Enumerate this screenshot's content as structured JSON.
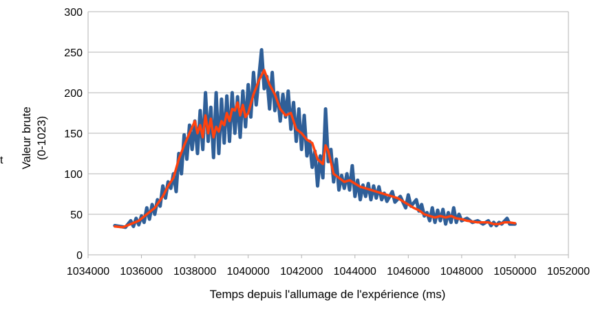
{
  "chart_data": {
    "type": "line",
    "title": "",
    "xlabel": "Temps depuis l'allumage de l'expérience (ms)",
    "ylabel_lines": [
      "Valeur brute",
      "(0-1023)"
    ],
    "xlim": [
      1034000,
      1052000
    ],
    "ylim": [
      0,
      300
    ],
    "x_ticks": [
      1034000,
      1036000,
      1038000,
      1040000,
      1042000,
      1044000,
      1046000,
      1048000,
      1050000,
      1052000
    ],
    "y_ticks": [
      0,
      50,
      100,
      150,
      200,
      250,
      300
    ],
    "grid": "horizontal",
    "legend": "none",
    "left_edge_fragment": "t",
    "series": [
      {
        "color": "#2f5f98",
        "points": [
          [
            1035000,
            36
          ],
          [
            1035200,
            35
          ],
          [
            1035400,
            34
          ],
          [
            1035600,
            42
          ],
          [
            1035700,
            35
          ],
          [
            1035800,
            45
          ],
          [
            1035900,
            37
          ],
          [
            1036000,
            48
          ],
          [
            1036100,
            40
          ],
          [
            1036200,
            58
          ],
          [
            1036300,
            44
          ],
          [
            1036400,
            62
          ],
          [
            1036500,
            50
          ],
          [
            1036600,
            68
          ],
          [
            1036700,
            60
          ],
          [
            1036800,
            85
          ],
          [
            1036900,
            70
          ],
          [
            1037000,
            90
          ],
          [
            1037100,
            82
          ],
          [
            1037200,
            100
          ],
          [
            1037300,
            78
          ],
          [
            1037400,
            125
          ],
          [
            1037500,
            100
          ],
          [
            1037600,
            148
          ],
          [
            1037700,
            118
          ],
          [
            1037800,
            160
          ],
          [
            1037900,
            130
          ],
          [
            1038000,
            165
          ],
          [
            1038100,
            125
          ],
          [
            1038200,
            178
          ],
          [
            1038300,
            130
          ],
          [
            1038400,
            200
          ],
          [
            1038500,
            140
          ],
          [
            1038600,
            182
          ],
          [
            1038700,
            120
          ],
          [
            1038800,
            200
          ],
          [
            1038900,
            125
          ],
          [
            1039000,
            192
          ],
          [
            1039100,
            138
          ],
          [
            1039200,
            196
          ],
          [
            1039300,
            140
          ],
          [
            1039400,
            200
          ],
          [
            1039500,
            150
          ],
          [
            1039600,
            195
          ],
          [
            1039700,
            145
          ],
          [
            1039800,
            202
          ],
          [
            1039900,
            158
          ],
          [
            1040000,
            210
          ],
          [
            1040100,
            170
          ],
          [
            1040200,
            225
          ],
          [
            1040300,
            185
          ],
          [
            1040500,
            253
          ],
          [
            1040600,
            205
          ],
          [
            1040700,
            220
          ],
          [
            1040800,
            180
          ],
          [
            1040900,
            225
          ],
          [
            1041000,
            178
          ],
          [
            1041100,
            200
          ],
          [
            1041200,
            165
          ],
          [
            1041300,
            198
          ],
          [
            1041400,
            170
          ],
          [
            1041500,
            202
          ],
          [
            1041600,
            155
          ],
          [
            1041700,
            188
          ],
          [
            1041800,
            140
          ],
          [
            1041900,
            180
          ],
          [
            1042000,
            130
          ],
          [
            1042100,
            172
          ],
          [
            1042200,
            122
          ],
          [
            1042300,
            140
          ],
          [
            1042400,
            108
          ],
          [
            1042500,
            128
          ],
          [
            1042600,
            85
          ],
          [
            1042700,
            122
          ],
          [
            1042800,
            95
          ],
          [
            1042900,
            180
          ],
          [
            1043000,
            115
          ],
          [
            1043100,
            130
          ],
          [
            1043200,
            90
          ],
          [
            1043300,
            118
          ],
          [
            1043400,
            80
          ],
          [
            1043500,
            98
          ],
          [
            1043600,
            82
          ],
          [
            1043700,
            100
          ],
          [
            1043800,
            80
          ],
          [
            1043900,
            110
          ],
          [
            1044000,
            72
          ],
          [
            1044100,
            92
          ],
          [
            1044200,
            68
          ],
          [
            1044300,
            86
          ],
          [
            1044400,
            72
          ],
          [
            1044500,
            88
          ],
          [
            1044600,
            68
          ],
          [
            1044700,
            85
          ],
          [
            1044800,
            70
          ],
          [
            1044900,
            84
          ],
          [
            1045000,
            68
          ],
          [
            1045100,
            76
          ],
          [
            1045200,
            66
          ],
          [
            1045400,
            78
          ],
          [
            1045500,
            65
          ],
          [
            1045700,
            72
          ],
          [
            1045900,
            58
          ],
          [
            1046000,
            74
          ],
          [
            1046100,
            60
          ],
          [
            1046300,
            68
          ],
          [
            1046400,
            54
          ],
          [
            1046500,
            62
          ],
          [
            1046600,
            48
          ],
          [
            1046700,
            52
          ],
          [
            1046800,
            42
          ],
          [
            1046900,
            58
          ],
          [
            1047000,
            40
          ],
          [
            1047100,
            55
          ],
          [
            1047200,
            42
          ],
          [
            1047300,
            56
          ],
          [
            1047400,
            38
          ],
          [
            1047500,
            52
          ],
          [
            1047600,
            40
          ],
          [
            1047700,
            58
          ],
          [
            1047800,
            40
          ],
          [
            1047900,
            50
          ],
          [
            1048000,
            42
          ],
          [
            1048200,
            45
          ],
          [
            1048400,
            40
          ],
          [
            1048600,
            42
          ],
          [
            1048800,
            38
          ],
          [
            1049000,
            42
          ],
          [
            1049100,
            36
          ],
          [
            1049200,
            40
          ],
          [
            1049300,
            36
          ],
          [
            1049400,
            40
          ],
          [
            1049500,
            38
          ],
          [
            1049700,
            45
          ],
          [
            1049800,
            38
          ],
          [
            1050000,
            38
          ]
        ]
      },
      {
        "color": "#ff420e",
        "points": [
          [
            1035000,
            35
          ],
          [
            1035300,
            34
          ],
          [
            1035600,
            38
          ],
          [
            1035900,
            42
          ],
          [
            1036200,
            50
          ],
          [
            1036500,
            58
          ],
          [
            1036800,
            72
          ],
          [
            1037000,
            85
          ],
          [
            1037200,
            95
          ],
          [
            1037400,
            118
          ],
          [
            1037600,
            135
          ],
          [
            1037800,
            150
          ],
          [
            1038000,
            165
          ],
          [
            1038100,
            150
          ],
          [
            1038200,
            160
          ],
          [
            1038300,
            145
          ],
          [
            1038400,
            172
          ],
          [
            1038500,
            150
          ],
          [
            1038600,
            168
          ],
          [
            1038700,
            145
          ],
          [
            1038800,
            158
          ],
          [
            1038900,
            152
          ],
          [
            1039000,
            165
          ],
          [
            1039100,
            160
          ],
          [
            1039200,
            175
          ],
          [
            1039300,
            165
          ],
          [
            1039400,
            180
          ],
          [
            1039500,
            178
          ],
          [
            1039600,
            188
          ],
          [
            1039700,
            172
          ],
          [
            1039800,
            185
          ],
          [
            1039900,
            170
          ],
          [
            1040000,
            175
          ],
          [
            1040200,
            198
          ],
          [
            1040400,
            215
          ],
          [
            1040600,
            228
          ],
          [
            1040800,
            210
          ],
          [
            1041000,
            198
          ],
          [
            1041200,
            180
          ],
          [
            1041400,
            172
          ],
          [
            1041600,
            175
          ],
          [
            1041800,
            155
          ],
          [
            1042000,
            150
          ],
          [
            1042200,
            142
          ],
          [
            1042400,
            138
          ],
          [
            1042600,
            118
          ],
          [
            1042800,
            112
          ],
          [
            1042900,
            135
          ],
          [
            1043000,
            128
          ],
          [
            1043200,
            100
          ],
          [
            1043400,
            95
          ],
          [
            1043600,
            90
          ],
          [
            1043800,
            92
          ],
          [
            1044000,
            88
          ],
          [
            1044200,
            84
          ],
          [
            1044400,
            82
          ],
          [
            1044600,
            80
          ],
          [
            1044800,
            78
          ],
          [
            1045000,
            76
          ],
          [
            1045200,
            74
          ],
          [
            1045400,
            72
          ],
          [
            1045600,
            70
          ],
          [
            1045800,
            66
          ],
          [
            1046000,
            62
          ],
          [
            1046200,
            58
          ],
          [
            1046400,
            55
          ],
          [
            1046600,
            50
          ],
          [
            1046800,
            48
          ],
          [
            1047000,
            46
          ],
          [
            1047200,
            48
          ],
          [
            1047400,
            46
          ],
          [
            1047600,
            48
          ],
          [
            1047800,
            45
          ],
          [
            1048000,
            44
          ],
          [
            1048200,
            42
          ],
          [
            1048400,
            41
          ],
          [
            1048600,
            40
          ],
          [
            1048800,
            40
          ],
          [
            1049000,
            40
          ],
          [
            1049200,
            38
          ],
          [
            1049400,
            38
          ],
          [
            1049600,
            40
          ],
          [
            1049800,
            40
          ],
          [
            1050000,
            39
          ]
        ]
      }
    ]
  }
}
